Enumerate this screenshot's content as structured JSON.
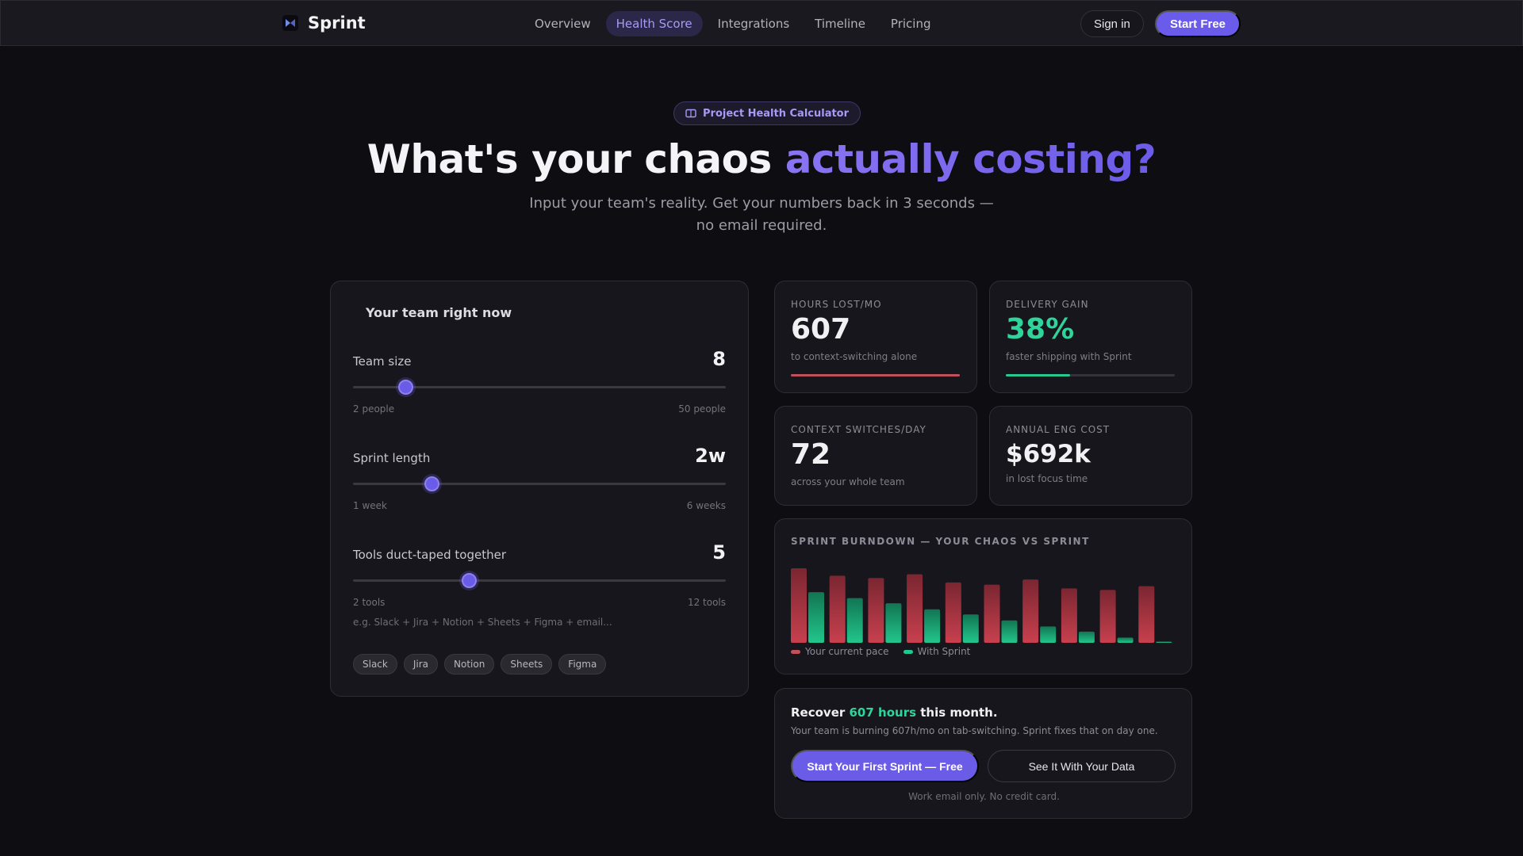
{
  "nav": {
    "brand": "Sprint",
    "links": [
      {
        "label": "Overview",
        "active": false
      },
      {
        "label": "Health Score",
        "active": true
      },
      {
        "label": "Integrations",
        "active": false
      },
      {
        "label": "Timeline",
        "active": false
      },
      {
        "label": "Pricing",
        "active": false
      }
    ],
    "signin_label": "Sign in",
    "start_free_label": "Start Free"
  },
  "hero": {
    "badge": "Project Health Calculator",
    "title_main": "What's your chaos ",
    "title_accent": "actually costing?",
    "subtitle": "Input your team's reality. Get your numbers back in 3 seconds — no email required."
  },
  "team_panel": {
    "title": "Your team right now",
    "sliders": [
      {
        "label": "Team size",
        "value": "8",
        "min_label": "2 people",
        "max_label": "50 people",
        "fraction": 0.14
      },
      {
        "label": "Sprint length",
        "value": "2w",
        "min_label": "1 week",
        "max_label": "6 weeks",
        "fraction": 0.21
      },
      {
        "label": "Tools duct-taped together",
        "value": "5",
        "min_label": "2 tools",
        "max_label": "12 tools",
        "fraction": 0.31
      }
    ],
    "hint": "e.g. Slack + Jira + Notion + Sheets + Figma + email...",
    "chips": [
      "Slack",
      "Jira",
      "Notion",
      "Sheets",
      "Figma"
    ]
  },
  "stats": {
    "hours": {
      "label": "HOURS LOST/MO",
      "value": "607",
      "desc": "to context-switching alone",
      "fraction": 1.0,
      "color": "#c0505a"
    },
    "delivery": {
      "label": "DELIVERY GAIN",
      "value": "38%",
      "desc": "faster shipping with Sprint",
      "fraction": 0.38,
      "color": "#26c98f"
    },
    "switches": {
      "label": "CONTEXT SWITCHES/DAY",
      "value": "72",
      "desc": "across your whole team"
    },
    "cost": {
      "label": "ANNUAL ENG COST",
      "value": "$692k",
      "desc": "in lost focus time"
    }
  },
  "chart_data": {
    "type": "bar",
    "title": "SPRINT BURNDOWN — YOUR CHAOS VS SPRINT",
    "categories": [
      "",
      "",
      "",
      "",
      "",
      "",
      "",
      "",
      "",
      ""
    ],
    "series": [
      {
        "name": "Your current pace",
        "color": "#b83d4b",
        "values": [
          100,
          90,
          87,
          92,
          81,
          78,
          85,
          73,
          71,
          76
        ]
      },
      {
        "name": "With Sprint",
        "color": "#1fb07f",
        "values": [
          68,
          60,
          53,
          45,
          38,
          30,
          22,
          15,
          7,
          1
        ]
      }
    ],
    "ylim": [
      0,
      100
    ]
  },
  "cta": {
    "head_prefix": "Recover ",
    "head_highlight": "607 hours",
    "head_suffix": " this month.",
    "subtitle": "Your team is burning 607h/mo on tab-switching. Sprint fixes that on day one.",
    "primary_label": "Start Your First Sprint — Free",
    "secondary_label": "See It With Your Data",
    "note": "Work email only. No credit card."
  }
}
